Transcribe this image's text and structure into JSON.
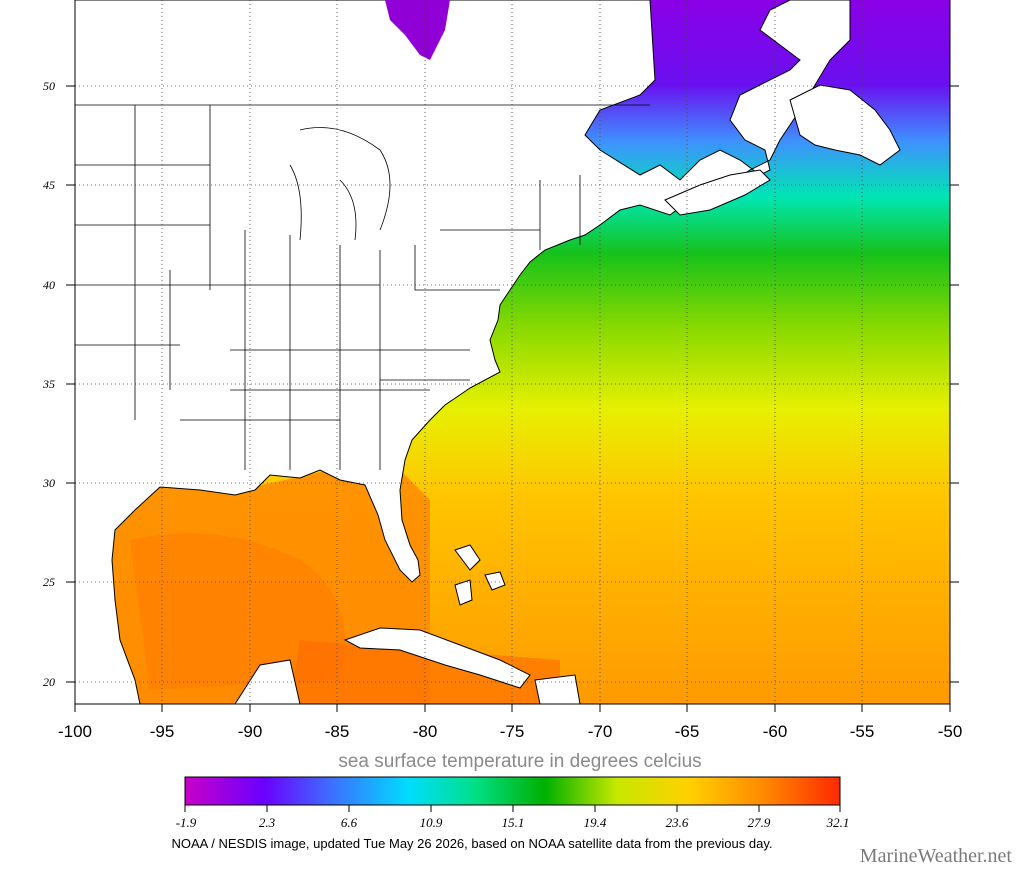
{
  "map": {
    "lat_labels": [
      "50",
      "45",
      "40",
      "35",
      "30",
      "25",
      "20"
    ],
    "lon_labels": [
      "-100",
      "-95",
      "-90",
      "-85",
      "-80",
      "-75",
      "-70",
      "-65",
      "-60",
      "-55",
      "-50"
    ]
  },
  "colorbar": {
    "caption": "sea surface temperature in degrees celcius",
    "tick_labels": [
      "-1.9",
      "2.3",
      "6.6",
      "10.9",
      "15.1",
      "19.4",
      "23.6",
      "27.9",
      "32.1"
    ],
    "colors": [
      "#c800c8",
      "#6a00ff",
      "#3f6bff",
      "#00dcff",
      "#00e08a",
      "#00b000",
      "#c8e800",
      "#ffd000",
      "#ff8c00",
      "#ff2a00"
    ]
  },
  "credit": "NOAA / NESDIS image, updated Tue May 26 2026, based on NOAA satellite data from the previous day.",
  "brand": "MarineWeather.net"
}
